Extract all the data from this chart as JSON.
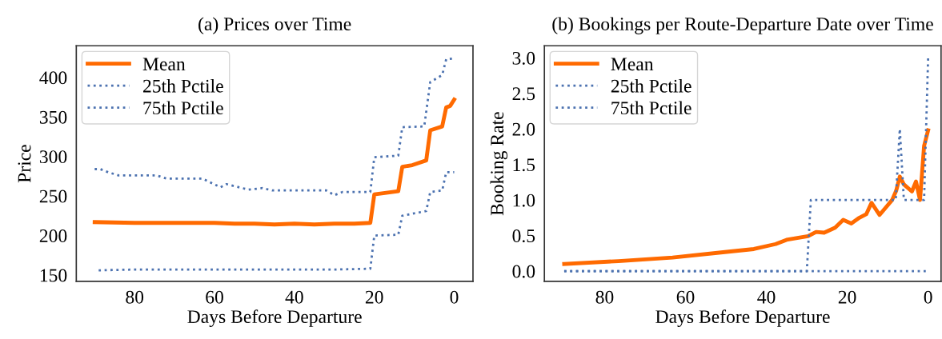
{
  "chart_data": [
    {
      "type": "line",
      "title": "(a) Prices over Time",
      "xlabel": "Days Before Departure",
      "ylabel": "Price",
      "xlim": [
        94.6,
        -4.7
      ],
      "xticks": [
        80,
        60,
        40,
        20,
        0
      ],
      "ylim": [
        142,
        440
      ],
      "yticks": [
        150,
        200,
        250,
        300,
        350,
        400
      ],
      "grid": false,
      "legend": "top left",
      "series": [
        {
          "name": "Mean",
          "color": "#ff6a00",
          "line_style": "solid",
          "x": [
            90,
            80,
            70,
            60,
            55,
            50,
            45,
            40,
            35,
            30,
            25,
            21,
            20,
            14,
            13,
            10.5,
            7,
            6,
            3,
            2,
            1,
            0
          ],
          "values": [
            217,
            216,
            216,
            216,
            215,
            215,
            214,
            215,
            214,
            215,
            215,
            216,
            252,
            256,
            287,
            289,
            295,
            333,
            338,
            362,
            364,
            372
          ]
        },
        {
          "name": "25th Pctile",
          "color": "#4c72b0",
          "line_style": "dotted",
          "x": [
            89,
            80,
            70,
            60,
            50,
            40,
            30,
            21,
            20,
            14,
            13,
            7,
            6,
            3,
            2,
            0
          ],
          "values": [
            156,
            157,
            157,
            157,
            157,
            157,
            157,
            158,
            200,
            201,
            225,
            231,
            255,
            257,
            280,
            280
          ]
        },
        {
          "name": "75th Pctile",
          "color": "#4c72b0",
          "line_style": "dotted",
          "x": [
            90,
            88.6,
            86.6,
            84,
            74.5,
            72,
            63,
            58.5,
            57,
            51.5,
            48,
            45.5,
            32,
            30,
            28,
            21,
            20,
            14,
            13,
            7.5,
            6,
            3,
            2,
            0
          ],
          "values": [
            284,
            284,
            280,
            276,
            276,
            272,
            272,
            261,
            265,
            258,
            260,
            257,
            257,
            251,
            255,
            255,
            299,
            301,
            337,
            338,
            394,
            403,
            423,
            424
          ]
        }
      ]
    },
    {
      "type": "line",
      "title": "(b) Bookings per Route-Departure Date over Time",
      "xlabel": "Days Before Departure",
      "ylabel": "Booking Rate",
      "xlim": [
        94.9,
        -3.2
      ],
      "xticks": [
        80,
        60,
        40,
        20,
        0
      ],
      "ylim": [
        -0.145,
        3.17
      ],
      "yticks": [
        {
          "value": 0,
          "label": "0.0"
        },
        0.5,
        {
          "value": 1,
          "label": "1.0"
        },
        1.5,
        {
          "value": 2,
          "label": "2.0"
        },
        2.5,
        {
          "value": 3,
          "label": "3.0"
        }
      ],
      "grid": false,
      "legend": "top left",
      "series": [
        {
          "name": "Mean",
          "color": "#ff6a00",
          "line_style": "solid",
          "x": [
            90,
            76.6,
            63.2,
            49.8,
            43.1,
            37.7,
            35,
            29.7,
            27.7,
            25.7,
            23,
            21,
            19,
            17,
            15.3,
            14,
            12,
            8.9,
            7.9,
            7,
            6,
            4,
            3,
            2,
            1,
            0
          ],
          "values": [
            0.1,
            0.14,
            0.19,
            0.27,
            0.31,
            0.38,
            0.44,
            0.49,
            0.55,
            0.54,
            0.61,
            0.72,
            0.67,
            0.75,
            0.8,
            0.96,
            0.79,
            1.0,
            1.13,
            1.33,
            1.22,
            1.12,
            1.26,
            1.0,
            1.76,
            1.98
          ]
        },
        {
          "name": "25th Pctile",
          "color": "#4c72b0",
          "line_style": "dotted",
          "x": [
            90,
            0
          ],
          "values": [
            0,
            0
          ]
        },
        {
          "name": "75th Pctile",
          "color": "#4c72b0",
          "line_style": "dotted",
          "x": [
            90,
            30,
            29,
            8,
            7,
            6,
            1,
            0
          ],
          "values": [
            0,
            0,
            1,
            1,
            2,
            1,
            1,
            3
          ]
        }
      ]
    }
  ]
}
